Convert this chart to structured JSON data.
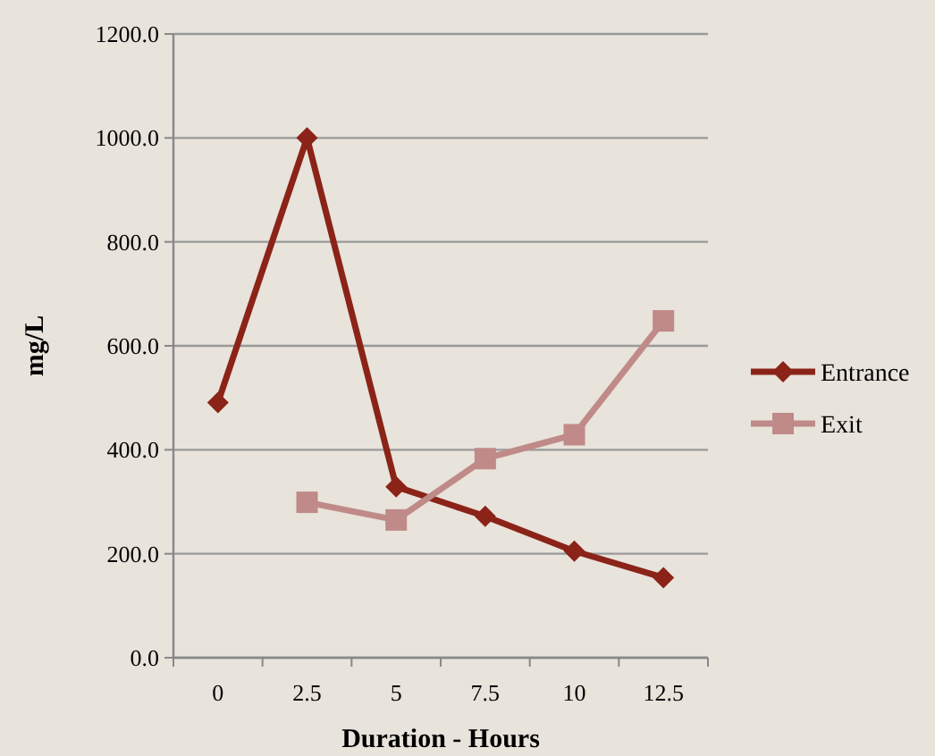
{
  "chart_data": {
    "type": "line",
    "xlabel": "Duration - Hours",
    "ylabel": "mg/L",
    "categories": [
      "0",
      "2.5",
      "5",
      "7.5",
      "10",
      "12.5"
    ],
    "series": [
      {
        "name": "Entrance",
        "color": "#8b2318",
        "marker": "diamond",
        "values": [
          491,
          1000,
          329,
          272,
          205,
          154
        ]
      },
      {
        "name": "Exit",
        "color": "#bf8a88",
        "marker": "square",
        "values": [
          null,
          299,
          265,
          383,
          429,
          648
        ]
      }
    ],
    "ylim": [
      0,
      1200
    ],
    "yticks": [
      {
        "value": 0,
        "label": "0.0"
      },
      {
        "value": 200,
        "label": "200.0"
      },
      {
        "value": 400,
        "label": "400.0"
      },
      {
        "value": 600,
        "label": "600.0"
      },
      {
        "value": 800,
        "label": "800.0"
      },
      {
        "value": 1000,
        "label": "1000.0"
      },
      {
        "value": 1200,
        "label": "1200.0"
      }
    ],
    "grid": "y",
    "legend": "right",
    "line_style": "solid"
  }
}
